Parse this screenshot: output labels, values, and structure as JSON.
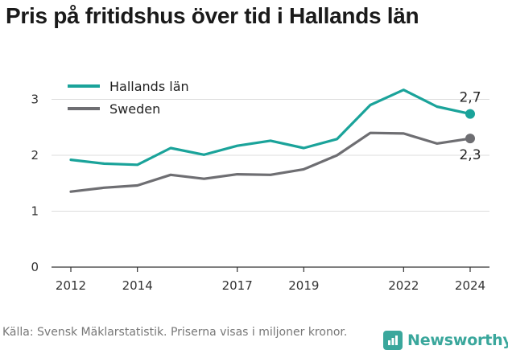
{
  "title": "Pris på fritidshus över tid i Hallands län",
  "source": "Källa: Svensk Mäklarstatistik. Priserna visas i miljoner kronor.",
  "brand": {
    "name": "Newsworthy",
    "icon": "newsworthy-logo-icon"
  },
  "colors": {
    "hallands": "#1aa39a",
    "sweden": "#6e6e72",
    "grid": "#dddddd",
    "axis": "#333333"
  },
  "chart_data": {
    "type": "line",
    "title": "Pris på fritidshus över tid i Hallands län",
    "xlabel": "",
    "ylabel": "",
    "x": [
      2012,
      2013,
      2014,
      2015,
      2016,
      2017,
      2018,
      2019,
      2020,
      2021,
      2022,
      2023,
      2024
    ],
    "x_ticks": [
      2012,
      2014,
      2017,
      2019,
      2022,
      2024
    ],
    "xlim": [
      2012,
      2024
    ],
    "ylim": [
      0,
      3.5
    ],
    "y_ticks": [
      0,
      1,
      2,
      3
    ],
    "grid": "horizontal",
    "legend": "top-left",
    "series": [
      {
        "name": "Hallands län",
        "color": "#1aa39a",
        "values": [
          1.92,
          1.85,
          1.83,
          2.13,
          2.01,
          2.17,
          2.26,
          2.13,
          2.29,
          2.9,
          3.17,
          2.87,
          2.74
        ],
        "end_label": "2,7"
      },
      {
        "name": "Sweden",
        "color": "#6e6e72",
        "values": [
          1.35,
          1.42,
          1.46,
          1.65,
          1.58,
          1.66,
          1.65,
          1.75,
          2.0,
          2.4,
          2.39,
          2.21,
          2.3
        ],
        "end_label": "2,3"
      }
    ]
  }
}
